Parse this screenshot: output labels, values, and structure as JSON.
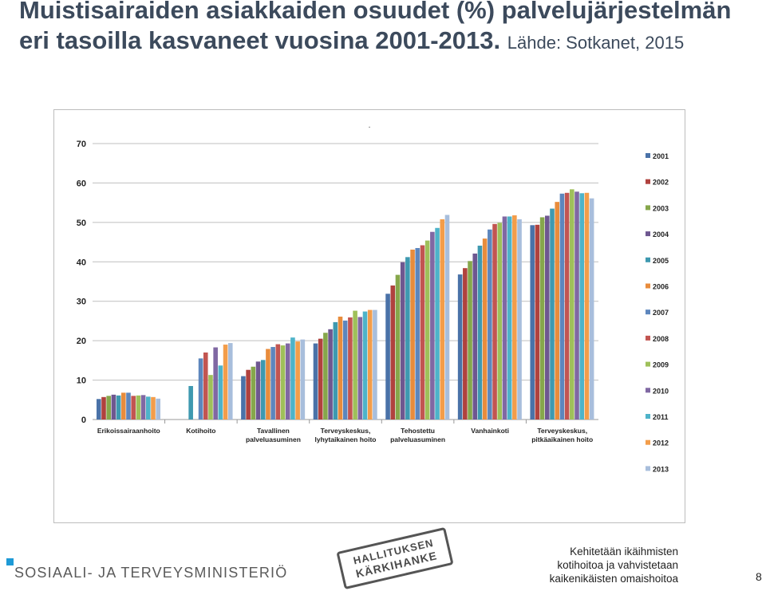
{
  "slide": {
    "title": "Muistisairaiden asiakkaiden osuudet (%) palvelujärjestelmän eri tasoilla kasvaneet vuosina 2001-2013.",
    "source": "Lähde: Sotkanet, 2015",
    "ministry": "SOSIAALI- JA TERVEYSMINISTERIÖ",
    "stamp_line1": "HALLITUKSEN",
    "stamp_line2": "KÄRKIHANKE",
    "tagline": [
      "Kehitetään ikäihmisten",
      "kotihoitoa ja vahvistetaan",
      "kaikenikäisten omaishoitoa"
    ],
    "page_number": "8"
  },
  "chart_data": {
    "type": "bar",
    "chart_title": ".",
    "ylim": [
      0,
      70
    ],
    "yticks": [
      0,
      10,
      20,
      30,
      40,
      50,
      60,
      70
    ],
    "grid": true,
    "legend_position": "right",
    "categories": [
      [
        "Erikoissairaanhoito"
      ],
      [
        "Kotihoito"
      ],
      [
        "Tavallinen",
        "palveluasuminen"
      ],
      [
        "Terveyskeskus,",
        "lyhytaikainen hoito"
      ],
      [
        "Tehostettu",
        "palveluasuminen"
      ],
      [
        "Vanhainkoti"
      ],
      [
        "Terveyskeskus,",
        "pitkäaikainen hoito"
      ]
    ],
    "series": [
      {
        "name": "2001",
        "color": "#4a72a8",
        "values": [
          5.2,
          null,
          11.0,
          19.3,
          31.9,
          36.8,
          49.3
        ]
      },
      {
        "name": "2002",
        "color": "#b0423e",
        "values": [
          5.7,
          null,
          12.6,
          20.5,
          34.0,
          38.4,
          49.4
        ]
      },
      {
        "name": "2003",
        "color": "#86a74b",
        "values": [
          6.0,
          null,
          13.4,
          22.0,
          36.7,
          40.2,
          51.3
        ]
      },
      {
        "name": "2004",
        "color": "#6e5790",
        "values": [
          6.3,
          null,
          14.7,
          22.9,
          39.9,
          42.1,
          51.7
        ]
      },
      {
        "name": "2005",
        "color": "#3e99b0",
        "values": [
          6.1,
          8.5,
          15.1,
          24.7,
          41.2,
          44.1,
          53.5
        ]
      },
      {
        "name": "2006",
        "color": "#e88c3c",
        "values": [
          6.8,
          null,
          17.9,
          26.1,
          43.1,
          45.9,
          55.2
        ]
      },
      {
        "name": "2007",
        "color": "#5d86bd",
        "values": [
          6.8,
          null,
          18.4,
          25.1,
          43.5,
          48.2,
          57.3
        ]
      },
      {
        "name": "2008",
        "color": "#c25551",
        "values": [
          6.0,
          null,
          19.1,
          25.9,
          44.2,
          49.6,
          57.5
        ]
      },
      {
        "name": "2009",
        "color": "#9fc05a",
        "values": [
          6.1,
          11.3,
          18.8,
          27.6,
          45.4,
          49.9,
          58.4
        ]
      },
      {
        "name": "2010",
        "color": "#8068a3",
        "values": [
          6.2,
          null,
          19.3,
          26.0,
          47.6,
          51.5,
          57.8
        ]
      },
      {
        "name": "2011",
        "color": "#4eb3c9",
        "values": [
          5.8,
          13.7,
          20.8,
          27.4,
          48.6,
          51.5,
          57.4
        ]
      },
      {
        "name": "2012",
        "color": "#f39d4a",
        "values": [
          5.7,
          null,
          19.8,
          27.8,
          50.8,
          51.8,
          57.5
        ]
      },
      {
        "name": "2013",
        "color": "#a8bedc",
        "values": [
          5.3,
          null,
          20.3,
          27.8,
          51.9,
          50.8,
          56.1
        ]
      }
    ],
    "kotihoito_extra": [
      15.5,
      17.0,
      17.5,
      18.3,
      18.3,
      19.0,
      19.4
    ]
  }
}
